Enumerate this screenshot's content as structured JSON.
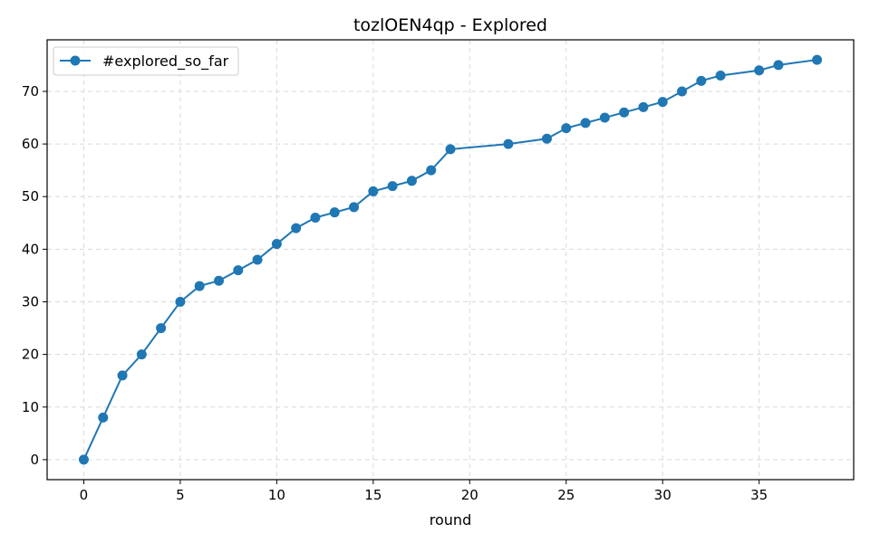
{
  "chart_data": {
    "type": "line",
    "title": "tozlOEN4qp - Explored",
    "xlabel": "round",
    "ylabel": "",
    "xlim": [
      -1.9,
      39.9
    ],
    "ylim": [
      -3.8,
      79.8
    ],
    "xticks": [
      0,
      5,
      10,
      15,
      20,
      25,
      30,
      35
    ],
    "yticks": [
      0,
      10,
      20,
      30,
      40,
      50,
      60,
      70
    ],
    "grid": true,
    "legend_position": "upper-left",
    "series": [
      {
        "name": "#explored_so_far",
        "color": "#1f77b4",
        "marker": "circle",
        "x": [
          0,
          1,
          2,
          3,
          4,
          5,
          6,
          7,
          8,
          9,
          10,
          11,
          12,
          13,
          14,
          15,
          16,
          17,
          18,
          19,
          22,
          24,
          25,
          26,
          27,
          28,
          29,
          30,
          31,
          32,
          33,
          35,
          36,
          38
        ],
        "y": [
          0,
          8,
          16,
          20,
          25,
          30,
          33,
          34,
          36,
          38,
          41,
          44,
          46,
          47,
          48,
          51,
          52,
          53,
          55,
          59,
          60,
          61,
          63,
          64,
          65,
          66,
          67,
          68,
          70,
          72,
          73,
          74,
          75,
          76
        ]
      }
    ]
  }
}
